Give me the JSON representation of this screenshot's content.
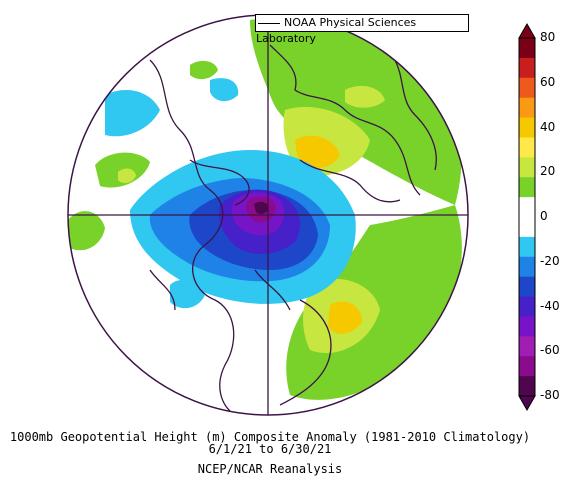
{
  "credit": "NOAA Physical Sciences Laboratory",
  "caption": {
    "line1": "1000mb Geopotential Height (m) Composite Anomaly (1981-2010 Climatology)",
    "line2": "6/1/21  to 6/30/21",
    "line3": "NCEP/NCAR Reanalysis"
  },
  "colorbar": {
    "ticks": [
      "80",
      "60",
      "40",
      "20",
      "0",
      "-20",
      "-40",
      "-60",
      "-80"
    ],
    "colors": [
      "#7a0018",
      "#c81e1e",
      "#ee5a1e",
      "#fa9a14",
      "#f5c800",
      "#ffe84a",
      "#c8e640",
      "#78d22a",
      "#ffffff",
      "#ffffff",
      "#30c8f0",
      "#1e82e6",
      "#1e46c8",
      "#4620c8",
      "#7814c8",
      "#a01eb4",
      "#8c0a8c",
      "#50064e"
    ]
  }
}
